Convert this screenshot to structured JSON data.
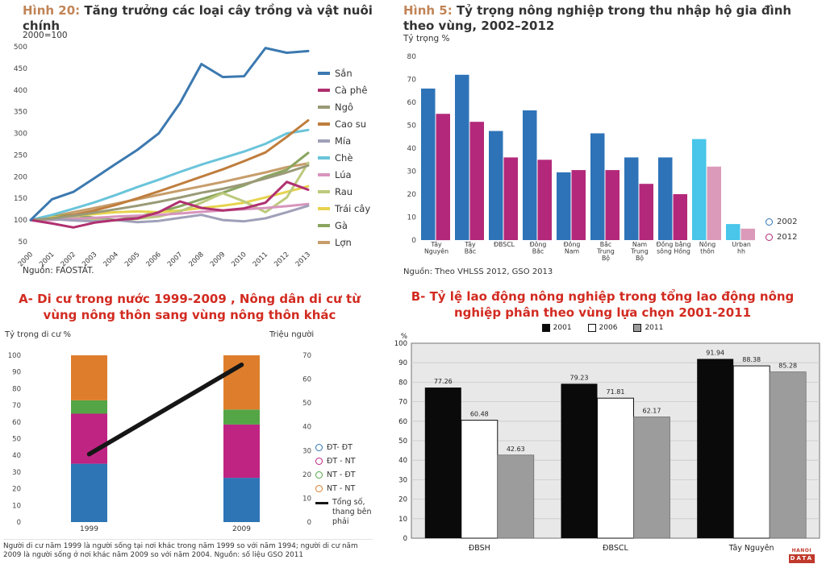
{
  "page": {
    "accent_pink": "#f3cac3"
  },
  "fig20": {
    "label": "Hình 20:",
    "title": "Tăng trưởng các loại cây trồng và vật nuôi chính",
    "axis_note": "2000=100",
    "source": "Nguồn: FAOSTAT."
  },
  "fig5": {
    "label": "Hình 5:",
    "title": "Tỷ trọng nông nghiệp trong thu nhập hộ gia đình theo vùng, 2002–2012",
    "ylabel": "Tỷ trọng %",
    "source": "Nguồn: Theo VHLSS 2012, GSO 2013"
  },
  "panelA": {
    "title": "A- Di cư trong nước 1999-2009 , Nông dân di cư từ vùng nông thôn sang vùng nông thôn khác",
    "left_axis_label": "Tỷ trọng di cư %",
    "right_axis_label": "Triệu người",
    "footnote": "Người di cư năm 1999 là người sống tại nơi khác trong năm 1999 so với năm 1994; người di cư năm 2009 là người sống ở nơi khác năm 2009 so với năm 2004. Nguồn: số liệu GSO 2011"
  },
  "panelB": {
    "title": "B- Tỷ lệ lao động nông nghiệp trong tổng lao động  nghiệp phân theo vùng lựa chọn 2001-2011",
    "title_full": "B- Tỷ lệ lao động nông nghiệp trong tổng lao động  nông nghiệp phân theo vùng lựa chọn 2001-2011",
    "ylabel": "%",
    "logo_line1": "HANOI",
    "logo_line2": "DATA"
  },
  "chart_data": [
    {
      "id": "fig20",
      "type": "line",
      "title": "Tăng trưởng các loại cây trồng và vật nuôi chính",
      "index_note": "2000=100",
      "x": [
        2000,
        2001,
        2002,
        2003,
        2004,
        2005,
        2006,
        2007,
        2008,
        2009,
        2010,
        2011,
        2012,
        2013
      ],
      "ylim": [
        50,
        500
      ],
      "ytick_step": 50,
      "grid": false,
      "legend_position": "right",
      "series": [
        {
          "name": "Sắn",
          "color": "#3c79b0",
          "values": [
            100,
            148,
            165,
            197,
            230,
            262,
            300,
            370,
            460,
            430,
            432,
            497,
            486,
            490
          ]
        },
        {
          "name": "Cà phê",
          "color": "#b03070",
          "values": [
            100,
            92,
            83,
            94,
            100,
            104,
            118,
            143,
            128,
            122,
            127,
            140,
            188,
            170
          ]
        },
        {
          "name": "Ngô",
          "color": "#9a9a78",
          "values": [
            100,
            104,
            110,
            117,
            125,
            133,
            142,
            152,
            163,
            172,
            183,
            196,
            210,
            226
          ]
        },
        {
          "name": "Cao su",
          "color": "#bf7d3d",
          "values": [
            100,
            104,
            112,
            122,
            135,
            150,
            166,
            183,
            200,
            217,
            236,
            256,
            292,
            330
          ]
        },
        {
          "name": "Mía",
          "color": "#9fa0b8",
          "values": [
            100,
            102,
            99,
            97,
            100,
            95,
            98,
            105,
            112,
            100,
            97,
            104,
            118,
            133
          ]
        },
        {
          "name": "Chè",
          "color": "#6ac4da",
          "values": [
            100,
            112,
            126,
            141,
            158,
            176,
            193,
            211,
            228,
            243,
            258,
            276,
            300,
            308
          ]
        },
        {
          "name": "Lúa",
          "color": "#d795bd",
          "values": [
            100,
            100,
            103,
            105,
            108,
            110,
            112,
            115,
            119,
            122,
            125,
            128,
            132,
            137
          ]
        },
        {
          "name": "Rau",
          "color": "#bdca7c",
          "values": [
            100,
            103,
            106,
            100,
            99,
            103,
            108,
            120,
            140,
            162,
            143,
            118,
            152,
            232
          ]
        },
        {
          "name": "Trái cây",
          "color": "#e7d34e",
          "values": [
            100,
            106,
            110,
            114,
            118,
            120,
            118,
            122,
            128,
            133,
            140,
            152,
            165,
            178
          ]
        },
        {
          "name": "Gà",
          "color": "#8aa55f",
          "values": [
            100,
            108,
            112,
            105,
            100,
            108,
            118,
            132,
            148,
            163,
            180,
            200,
            216,
            255
          ]
        },
        {
          "name": "Lợn",
          "color": "#c79d6b",
          "values": [
            100,
            108,
            118,
            128,
            138,
            148,
            158,
            168,
            178,
            188,
            199,
            210,
            222,
            231
          ]
        }
      ]
    },
    {
      "id": "fig5",
      "type": "bar",
      "title": "Tỷ trọng nông nghiệp trong thu nhập hộ gia đình theo vùng, 2002–2012",
      "ylabel": "Tỷ trọng %",
      "ylim": [
        0,
        80
      ],
      "ytick_step": 10,
      "grid": false,
      "legend_position": "bottom-right",
      "categories": [
        [
          "Tây",
          "Nguyên"
        ],
        [
          "Tây",
          "Bắc"
        ],
        [
          "ĐBSCL"
        ],
        [
          "Đông",
          "Bắc"
        ],
        [
          "Đông",
          "Nam"
        ],
        [
          "Bắc",
          "Trung",
          "Bộ"
        ],
        [
          "Nam",
          "Trung",
          "Bộ"
        ],
        [
          "Đồng bằng",
          "sông Hồng"
        ],
        [
          "Nông",
          "thôn"
        ],
        [
          "Urban",
          "hh"
        ]
      ],
      "light_category_indices": [
        8,
        9
      ],
      "series": [
        {
          "name": "2002",
          "color": "#2e73b8",
          "light_color": "#49c6e9",
          "values": [
            66,
            72,
            47.5,
            56.5,
            29.5,
            46.5,
            36,
            36,
            44,
            7
          ]
        },
        {
          "name": "2012",
          "color": "#b3287a",
          "light_color": "#db9ab9",
          "values": [
            55,
            51.5,
            36,
            35,
            30.5,
            30.5,
            24.5,
            20,
            32,
            5
          ]
        }
      ]
    },
    {
      "id": "panelA",
      "type": "stacked-bar-line",
      "title": "Di cư trong nước 1999-2009",
      "categories": [
        "1999",
        "2009"
      ],
      "left_ylim": [
        0,
        100
      ],
      "right_ylim": [
        0,
        70
      ],
      "ytick_step": 10,
      "grid": false,
      "segments": [
        {
          "name": "ĐT- ĐT",
          "color": "#2e75b6",
          "values": [
            35,
            26.5
          ]
        },
        {
          "name": "ĐT - NT",
          "color": "#bf2483",
          "values": [
            30,
            32
          ]
        },
        {
          "name": "NT - ĐT",
          "color": "#54a546",
          "values": [
            8,
            9
          ]
        },
        {
          "name": "NT - NT",
          "color": "#de7e2d",
          "values": [
            27,
            32.5
          ]
        }
      ],
      "line": {
        "name": "Tổng số, thang bên phải",
        "color": "#161616",
        "axis": "right",
        "values": [
          28.5,
          66
        ]
      }
    },
    {
      "id": "panelB",
      "type": "bar",
      "title": "Tỷ lệ lao động nông nghiệp trong tổng lao động nông nghiệp phân theo vùng lựa chọn 2001-2011",
      "ylabel": "%",
      "ylim": [
        0,
        100
      ],
      "ytick_step": 10,
      "grid": true,
      "plot_bg": "#e8e8e8",
      "grid_color": "#c9c9c9",
      "value_labels": true,
      "legend_position": "top",
      "categories": [
        "ĐBSH",
        "ĐBSCL",
        "Tây Nguyên"
      ],
      "series": [
        {
          "name": "2001",
          "color": "#0a0a0a",
          "values": [
            77.26,
            79.23,
            91.94
          ]
        },
        {
          "name": "2006",
          "color": "#ffffff",
          "values": [
            60.48,
            71.81,
            88.38
          ]
        },
        {
          "name": "2011",
          "color": "#9c9c9c",
          "values": [
            42.63,
            62.17,
            85.28
          ]
        }
      ]
    }
  ]
}
